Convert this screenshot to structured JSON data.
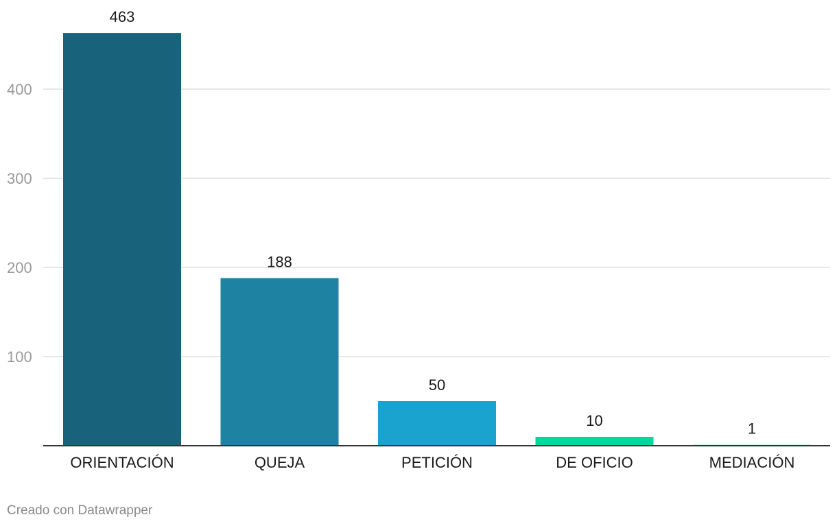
{
  "chart_data": {
    "type": "bar",
    "categories": [
      "ORIENTACIÓN",
      "QUEJA",
      "PETICIÓN",
      "DE OFICIO",
      "MEDIACIÓN"
    ],
    "values": [
      463,
      188,
      50,
      10,
      1
    ],
    "value_labels": [
      "463",
      "188",
      "50",
      "10",
      "1"
    ],
    "colors": [
      "#18627b",
      "#1e82a2",
      "#1ba3cf",
      "#00d79e",
      "#3fd8b0"
    ],
    "yticks": [
      100,
      200,
      300,
      400
    ],
    "ytick_labels": [
      "100",
      "200",
      "300",
      "400"
    ],
    "ylim": [
      0,
      463
    ],
    "grid": true,
    "title": "",
    "xlabel": "",
    "ylabel": ""
  },
  "footer": {
    "credit": "Creado con Datawrapper"
  }
}
